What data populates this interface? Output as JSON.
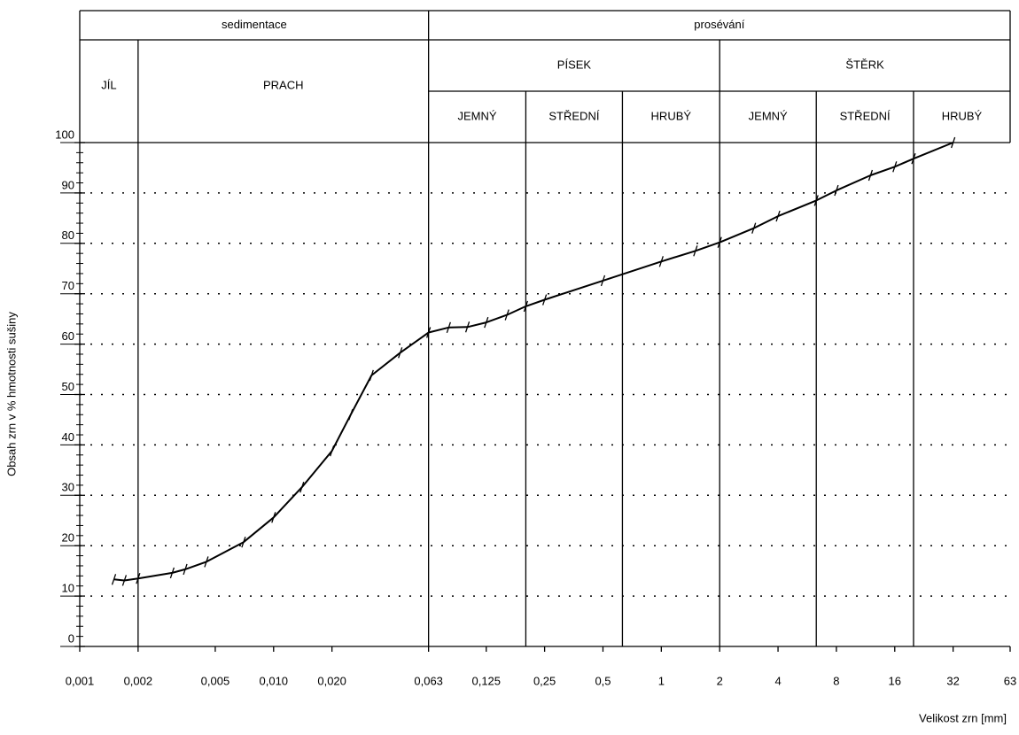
{
  "chart_data": {
    "type": "line",
    "ylabel": "Obsah zrn v % hmotnosti sušiny",
    "xlabel": "Velikost zrn [mm]",
    "log_x": true,
    "grid": true,
    "xlim": [
      0.001,
      63
    ],
    "ylim": [
      0,
      100
    ],
    "xticks": [
      {
        "value": 0.001,
        "label": "0,001"
      },
      {
        "value": 0.002,
        "label": "0,002"
      },
      {
        "value": 0.005,
        "label": "0,005"
      },
      {
        "value": 0.01,
        "label": "0,010"
      },
      {
        "value": 0.02,
        "label": "0,020"
      },
      {
        "value": 0.063,
        "label": "0,063"
      },
      {
        "value": 0.125,
        "label": "0,125"
      },
      {
        "value": 0.25,
        "label": "0,25"
      },
      {
        "value": 0.5,
        "label": "0,5"
      },
      1,
      2,
      4,
      8,
      16,
      32,
      63
    ],
    "yticks": [
      0,
      10,
      20,
      30,
      40,
      50,
      60,
      70,
      80,
      90,
      100
    ],
    "yminorticks": [
      2,
      4,
      6,
      8,
      12,
      14,
      16,
      18,
      22,
      24,
      26,
      28,
      32,
      34,
      36,
      38,
      42,
      44,
      46,
      48,
      52,
      54,
      56,
      58,
      62,
      64,
      66,
      68,
      72,
      74,
      76,
      78,
      82,
      84,
      86,
      88,
      92,
      94,
      96,
      98
    ],
    "header": {
      "groups": [
        {
          "label": "sedimentace",
          "range": [
            0.001,
            0.063
          ]
        },
        {
          "label": "prosévání",
          "range": [
            0.063,
            63
          ]
        }
      ],
      "classes": [
        {
          "label": "JÍL",
          "range": [
            0.001,
            0.002
          ]
        },
        {
          "label": "PRACH",
          "range": [
            0.002,
            0.063
          ]
        },
        {
          "label": "PÍSEK",
          "range": [
            0.063,
            2
          ],
          "subclasses": [
            {
              "label": "JEMNÝ",
              "range": [
                0.063,
                0.2
              ]
            },
            {
              "label": "STŘEDNÍ",
              "range": [
                0.2,
                0.63
              ]
            },
            {
              "label": "HRUBÝ",
              "range": [
                0.63,
                2
              ]
            }
          ]
        },
        {
          "label": "ŠTĚRK",
          "range": [
            2,
            63
          ],
          "subclasses": [
            {
              "label": "JEMNÝ",
              "range": [
                2,
                6.3
              ]
            },
            {
              "label": "STŘEDNÍ",
              "range": [
                6.3,
                20
              ]
            },
            {
              "label": "HRUBÝ",
              "range": [
                20,
                63
              ]
            }
          ]
        }
      ]
    },
    "series": [
      {
        "color": "#000000",
        "x": [
          0.0015,
          0.0017,
          0.002,
          0.003,
          0.0035,
          0.0045,
          0.007,
          0.01,
          0.014,
          0.02,
          0.025,
          0.032,
          0.045,
          0.063,
          0.08,
          0.1,
          0.125,
          0.16,
          0.2,
          0.25,
          0.5,
          1,
          1.5,
          2,
          3,
          4,
          6.3,
          8,
          12,
          16,
          20,
          32
        ],
        "values": [
          13.3,
          13.1,
          13.5,
          14.6,
          15.3,
          16.8,
          20.7,
          25.6,
          31.6,
          38.8,
          46,
          53.8,
          58.3,
          62.3,
          63.3,
          63.4,
          64.3,
          65.8,
          67.5,
          68.8,
          72.6,
          76.4,
          78.5,
          80.2,
          83,
          85.4,
          88.5,
          90.5,
          93.5,
          95.2,
          96.8,
          100
        ]
      }
    ]
  }
}
